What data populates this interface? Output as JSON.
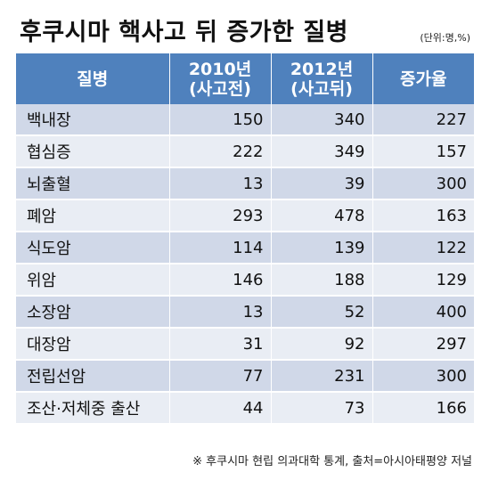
{
  "title": "후쿠시마 핵사고 뒤 증가한 질병",
  "unit": "(단위:명,%)",
  "source": "※ 후쿠시마 현립 의과대학 통계, 출처=아시아태평양 저널",
  "chart_data": {
    "type": "table",
    "columns": [
      {
        "line1": "질병",
        "line2": ""
      },
      {
        "line1": "2010년",
        "line2": "(사고전)"
      },
      {
        "line1": "2012년",
        "line2": "(사고뒤)"
      },
      {
        "line1": "증가율",
        "line2": ""
      }
    ],
    "rows": [
      {
        "name": "백내장",
        "y2010": 150,
        "y2012": 340,
        "rate": 227
      },
      {
        "name": "협심증",
        "y2010": 222,
        "y2012": 349,
        "rate": 157
      },
      {
        "name": "뇌출혈",
        "y2010": 13,
        "y2012": 39,
        "rate": 300
      },
      {
        "name": "폐암",
        "y2010": 293,
        "y2012": 478,
        "rate": 163
      },
      {
        "name": "식도암",
        "y2010": 114,
        "y2012": 139,
        "rate": 122
      },
      {
        "name": "위암",
        "y2010": 146,
        "y2012": 188,
        "rate": 129
      },
      {
        "name": "소장암",
        "y2010": 13,
        "y2012": 52,
        "rate": 400
      },
      {
        "name": "대장암",
        "y2010": 31,
        "y2012": 92,
        "rate": 297
      },
      {
        "name": "전립선암",
        "y2010": 77,
        "y2012": 231,
        "rate": 300
      },
      {
        "name": "조산·저체중 출산",
        "y2010": 44,
        "y2012": 73,
        "rate": 166
      }
    ]
  }
}
